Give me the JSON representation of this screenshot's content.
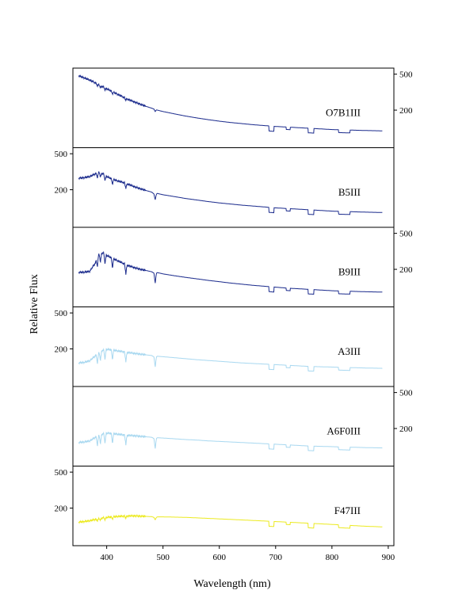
{
  "chart_data": {
    "type": "line",
    "xlabel": "Wavelength (nm)",
    "ylabel": "Relative Flux",
    "xlim": [
      340,
      910
    ],
    "x_ticks": [
      "400",
      "500",
      "600",
      "700",
      "800",
      "900"
    ],
    "x_tick_values": [
      400,
      500,
      600,
      700,
      800,
      900
    ],
    "panel_tick_labels": [
      "500",
      "200"
    ],
    "panel_tick_values": [
      500,
      200
    ],
    "panels": [
      {
        "label": "O7B1III",
        "color": "#1a2a8c",
        "axis_side": "right",
        "x": [
          350,
          360,
          370,
          380,
          390,
          400,
          410,
          420,
          430,
          440,
          450,
          460,
          470,
          480,
          486,
          490,
          500,
          520,
          540,
          560,
          580,
          600,
          620,
          640,
          660,
          680,
          700,
          720,
          740,
          760,
          780,
          800,
          820,
          840,
          860,
          890
        ],
        "y": [
          480,
          455,
          430,
          400,
          370,
          345,
          320,
          298,
          278,
          260,
          245,
          232,
          220,
          210,
          203,
          200,
          193,
          182,
          172,
          164,
          157,
          151,
          146,
          142,
          138,
          135,
          132,
          130,
          128,
          126,
          124,
          122,
          121,
          120,
          119,
          118
        ]
      },
      {
        "label": "B5III",
        "color": "#1a2a8c",
        "axis_side": "left",
        "x": [
          350,
          360,
          370,
          380,
          387,
          395,
          400,
          410,
          420,
          430,
          440,
          450,
          460,
          470,
          480,
          486,
          490,
          500,
          520,
          540,
          560,
          580,
          600,
          620,
          640,
          660,
          680,
          700,
          720,
          740,
          760,
          780,
          800,
          820,
          840,
          860,
          890
        ],
        "y": [
          268,
          272,
          280,
          300,
          315,
          295,
          280,
          262,
          250,
          240,
          228,
          215,
          205,
          196,
          188,
          175,
          182,
          176,
          168,
          160,
          154,
          148,
          143,
          139,
          135,
          132,
          129,
          126,
          124,
          122,
          120,
          118,
          116,
          115,
          114,
          113,
          112
        ]
      },
      {
        "label": "B9III",
        "color": "#1a2a8c",
        "axis_side": "right",
        "x": [
          350,
          360,
          370,
          380,
          385,
          390,
          395,
          400,
          410,
          420,
          430,
          440,
          450,
          460,
          470,
          480,
          486,
          490,
          500,
          520,
          540,
          560,
          580,
          600,
          620,
          640,
          660,
          680,
          700,
          720,
          740,
          760,
          780,
          800,
          820,
          840,
          860,
          890
        ],
        "y": [
          185,
          186,
          190,
          235,
          290,
          305,
          300,
          285,
          265,
          248,
          232,
          218,
          208,
          200,
          194,
          188,
          178,
          184,
          178,
          170,
          163,
          157,
          151,
          146,
          141,
          137,
          133,
          130,
          127,
          124,
          122,
          120,
          118,
          116,
          115,
          114,
          113,
          112
        ]
      },
      {
        "label": "A3III",
        "color": "#a8d8f0",
        "axis_side": "left",
        "x": [
          350,
          360,
          370,
          380,
          390,
          400,
          410,
          420,
          430,
          440,
          450,
          460,
          470,
          480,
          486,
          490,
          500,
          520,
          540,
          560,
          580,
          600,
          620,
          640,
          660,
          680,
          700,
          720,
          740,
          760,
          780,
          800,
          820,
          840,
          860,
          890
        ],
        "y": [
          140,
          142,
          148,
          168,
          190,
          198,
          195,
          190,
          186,
          182,
          178,
          175,
          172,
          169,
          160,
          166,
          164,
          160,
          156,
          152,
          149,
          146,
          143,
          140,
          138,
          136,
          134,
          132,
          130,
          128,
          127,
          126,
          125,
          124,
          123,
          122
        ]
      },
      {
        "label": "A6F0III",
        "color": "#a8d8f0",
        "axis_side": "right",
        "x": [
          350,
          360,
          370,
          380,
          390,
          400,
          410,
          420,
          430,
          440,
          450,
          460,
          470,
          480,
          486,
          490,
          500,
          520,
          540,
          560,
          580,
          600,
          620,
          640,
          660,
          680,
          700,
          720,
          740,
          760,
          780,
          800,
          820,
          840,
          860,
          890
        ],
        "y": [
          140,
          142,
          146,
          160,
          172,
          178,
          176,
          173,
          170,
          168,
          166,
          164,
          162,
          160,
          152,
          158,
          157,
          154,
          151,
          149,
          146,
          144,
          142,
          140,
          138,
          136,
          134,
          132,
          130,
          128,
          127,
          126,
          125,
          124,
          123,
          122
        ]
      },
      {
        "label": "F47III",
        "color": "#ecea20",
        "axis_side": "left",
        "x": [
          350,
          360,
          370,
          380,
          390,
          400,
          410,
          420,
          430,
          440,
          450,
          460,
          470,
          480,
          486,
          490,
          500,
          520,
          540,
          560,
          580,
          600,
          620,
          640,
          660,
          680,
          700,
          720,
          740,
          760,
          780,
          800,
          820,
          840,
          860,
          890
        ],
        "y": [
          140,
          142,
          145,
          150,
          155,
          158,
          160,
          162,
          163,
          164,
          164,
          163,
          162,
          161,
          156,
          160,
          160,
          159,
          158,
          156,
          154,
          152,
          150,
          148,
          146,
          144,
          142,
          140,
          138,
          136,
          134,
          132,
          130,
          128,
          126,
          124
        ]
      }
    ]
  }
}
